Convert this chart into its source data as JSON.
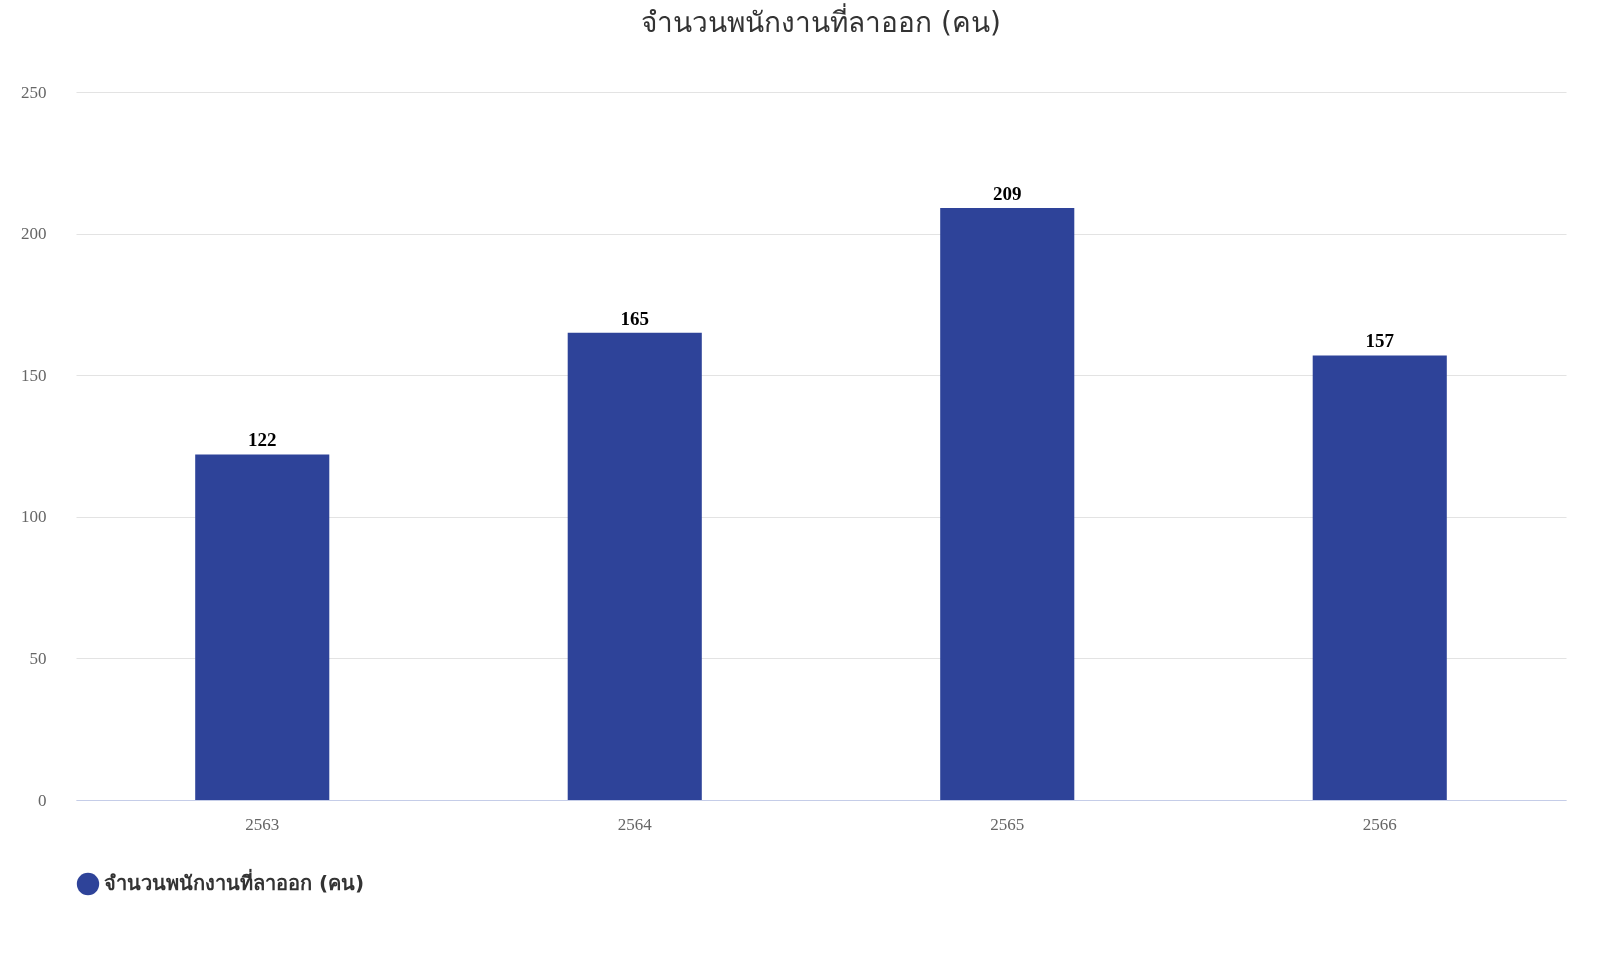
{
  "chart_data": {
    "type": "bar",
    "title": "จำนวนพนักงานที่ลาออก (คน)",
    "categories": [
      "2563",
      "2564",
      "2565",
      "2566"
    ],
    "series": [
      {
        "name": "จำนวนพนักงานที่ลาออก (คน)",
        "color": "#2e4399",
        "values": [
          122,
          165,
          209,
          157
        ]
      }
    ],
    "ylim": [
      0,
      250
    ],
    "yticks": [
      0,
      50,
      100,
      150,
      200,
      250
    ],
    "grid": "y",
    "legend": "bottom",
    "data_labels": true
  }
}
